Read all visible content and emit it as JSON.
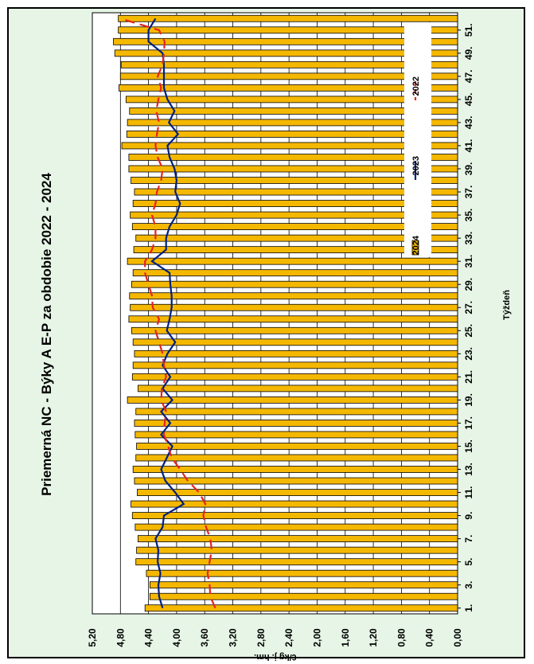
{
  "chart_data": {
    "type": "bar",
    "title": "Priemerná NC -  Býky A  E-P  za obdobie 2022 - 2024",
    "xlabel": "Týždeň",
    "ylabel": "€/kg j. hm.",
    "ylim": [
      0,
      5.2
    ],
    "y_ticks": [
      "0,00",
      "0,40",
      "0,80",
      "1,20",
      "1,60",
      "2,00",
      "2,40",
      "2,80",
      "3,20",
      "3,60",
      "4,00",
      "4,40",
      "4,80",
      "5,20"
    ],
    "x_tick_labels": [
      "1.",
      "3.",
      "5.",
      "7.",
      "9.",
      "11.",
      "13.",
      "15.",
      "17.",
      "19.",
      "21.",
      "23.",
      "25.",
      "27.",
      "29.",
      "31.",
      "33.",
      "35.",
      "37.",
      "39.",
      "41.",
      "43.",
      "45.",
      "47.",
      "49.",
      "51."
    ],
    "weeks": [
      1,
      2,
      3,
      4,
      5,
      6,
      7,
      8,
      9,
      10,
      11,
      12,
      13,
      14,
      15,
      16,
      17,
      18,
      19,
      20,
      21,
      22,
      23,
      24,
      25,
      26,
      27,
      28,
      29,
      30,
      31,
      32,
      33,
      34,
      35,
      36,
      37,
      38,
      39,
      40,
      41,
      42,
      43,
      44,
      45,
      46,
      47,
      48,
      49,
      50,
      51,
      52
    ],
    "grid": true,
    "orientation": "rotated-90",
    "legend_position": "right",
    "series": [
      {
        "name": "2024",
        "kind": "bar",
        "color": "#f5b800",
        "values": [
          4.45,
          4.38,
          4.38,
          4.43,
          4.58,
          4.57,
          4.55,
          4.59,
          4.63,
          4.65,
          4.56,
          4.6,
          4.62,
          4.58,
          4.57,
          4.59,
          4.6,
          4.58,
          4.7,
          4.55,
          4.63,
          4.62,
          4.6,
          4.62,
          4.64,
          4.68,
          4.66,
          4.67,
          4.64,
          4.62,
          4.7,
          4.61,
          4.58,
          4.63,
          4.66,
          4.62,
          4.6,
          4.65,
          4.68,
          4.68,
          4.78,
          4.71,
          4.7,
          4.67,
          4.72,
          4.82,
          4.8,
          4.79,
          4.88,
          4.9,
          4.83,
          4.83
        ]
      },
      {
        "name": "2023",
        "kind": "line",
        "color": "#002080",
        "dash": "solid",
        "values": [
          4.2,
          4.25,
          4.26,
          4.23,
          4.27,
          4.26,
          4.3,
          4.2,
          4.18,
          3.9,
          4.02,
          4.16,
          4.22,
          4.14,
          4.06,
          4.22,
          4.09,
          4.22,
          4.06,
          4.2,
          4.09,
          4.2,
          4.13,
          4.02,
          4.14,
          4.1,
          4.07,
          4.07,
          4.09,
          4.1,
          4.35,
          4.15,
          4.15,
          4.1,
          4.0,
          3.95,
          4.02,
          4.0,
          4.03,
          4.1,
          4.13,
          3.98,
          4.11,
          4.03,
          4.13,
          4.18,
          4.18,
          4.18,
          4.2,
          4.4,
          4.4,
          4.3
        ]
      },
      {
        "name": "2022",
        "kind": "line",
        "color": "#e8231c",
        "dash": "dashed",
        "values": [
          3.45,
          3.52,
          3.53,
          3.56,
          3.53,
          3.5,
          3.52,
          3.58,
          3.62,
          3.59,
          3.68,
          3.84,
          3.95,
          4.07,
          4.12,
          4.18,
          4.17,
          4.15,
          4.22,
          4.21,
          4.15,
          4.18,
          4.2,
          4.25,
          4.3,
          4.25,
          4.34,
          4.35,
          4.4,
          4.45,
          4.45,
          4.35,
          4.3,
          4.3,
          4.35,
          4.3,
          4.28,
          4.22,
          4.2,
          4.27,
          4.3,
          4.28,
          4.25,
          4.29,
          4.26,
          4.22,
          4.27,
          4.2,
          4.18,
          4.17,
          4.25,
          4.8
        ]
      }
    ]
  }
}
